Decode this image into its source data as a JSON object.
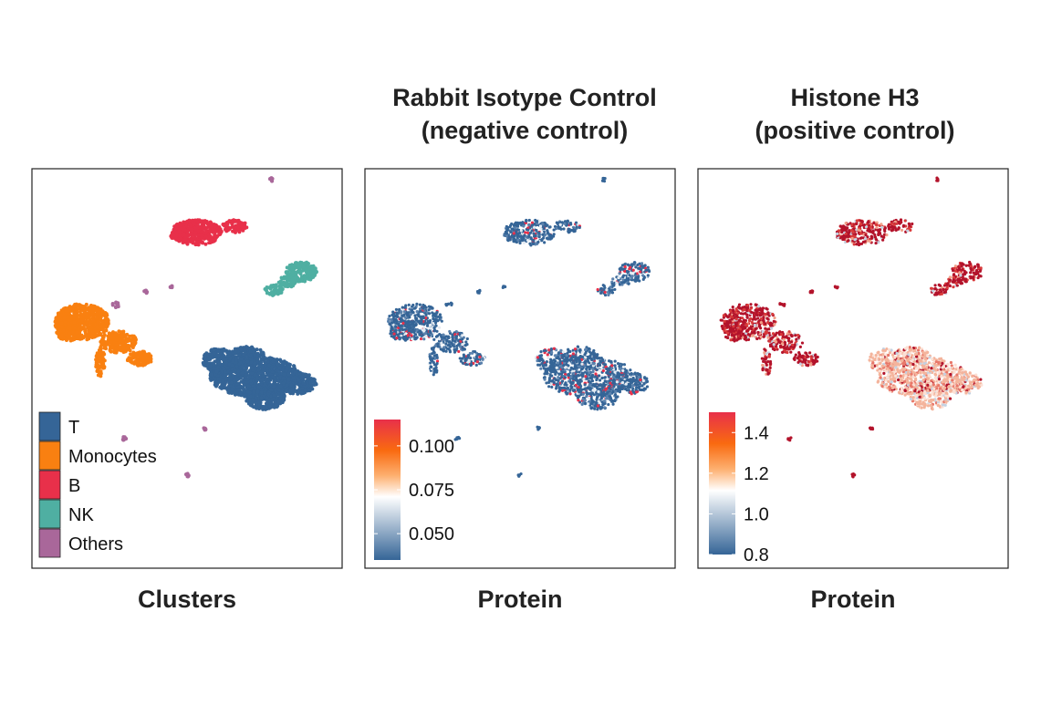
{
  "chart_data": [
    {
      "type": "scatter",
      "title": "",
      "xlabel": "Clusters",
      "legend": {
        "placement": "bottom-left",
        "entries": [
          {
            "name": "T",
            "color": "#356597"
          },
          {
            "name": "Monocytes",
            "color": "#F98011"
          },
          {
            "name": "B",
            "color": "#E8304A"
          },
          {
            "name": "NK",
            "color": "#4FAFA2"
          },
          {
            "name": "Others",
            "color": "#A9679A"
          }
        ]
      }
    },
    {
      "type": "scatter",
      "title_lines": [
        "Rabbit Isotype Control",
        "(negative control)"
      ],
      "xlabel": "Protein",
      "colorbar": {
        "ticks": [
          "0.100",
          "0.075",
          "0.050"
        ],
        "tick_values": [
          0.1,
          0.075,
          0.05
        ],
        "range": [
          0.035,
          0.115
        ],
        "colors": [
          "#E8304A",
          "#F96A10",
          "#FFFFFF",
          "#356597"
        ],
        "placement": "bottom-left"
      }
    },
    {
      "type": "scatter",
      "title_lines": [
        "Histone H3",
        "(positive control)"
      ],
      "xlabel": "Protein",
      "colorbar": {
        "ticks": [
          "1.4",
          "1.2",
          "1.0",
          "0.8"
        ],
        "tick_values": [
          1.4,
          1.2,
          1.0,
          0.8
        ],
        "range": [
          0.8,
          1.5
        ],
        "colors": [
          "#E8304A",
          "#F96A10",
          "#FFFFFF",
          "#356597"
        ],
        "placement": "bottom-left"
      }
    }
  ]
}
